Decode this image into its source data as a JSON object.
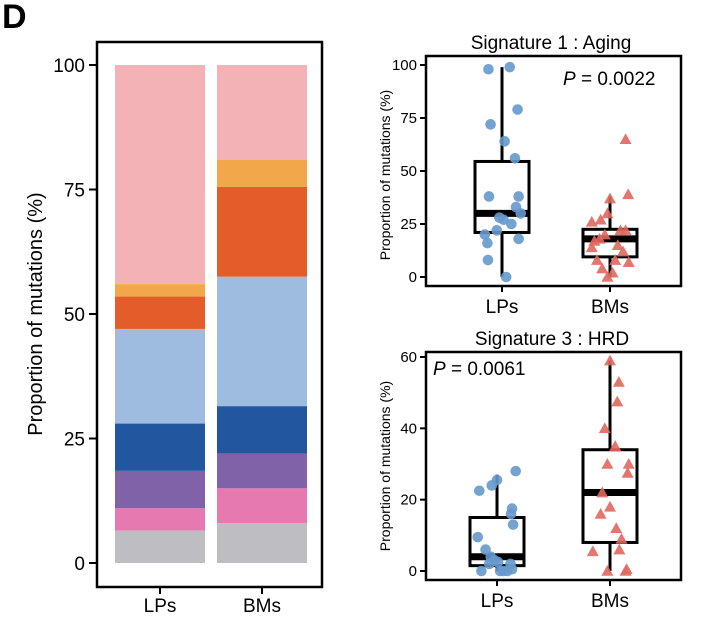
{
  "panel_label": "D",
  "colors": {
    "stack": [
      "#bdbdc2",
      "#e67ab0",
      "#7f62a8",
      "#2257a0",
      "#9dbce0",
      "#e55c2b",
      "#f2a84a",
      "#f2b2b6"
    ],
    "lp_point": "#6699cc",
    "bm_point": "#e0685f",
    "box": "#000000"
  },
  "chart_data": [
    {
      "type": "bar",
      "subtype": "stacked-100",
      "title": "",
      "xlabel": "",
      "ylabel": "Proportion of mutations (%)",
      "categories": [
        "LPs",
        "BMs"
      ],
      "ylim": [
        0,
        100
      ],
      "yticks": [
        "0",
        "25",
        "50",
        "75",
        "100"
      ],
      "grid": false,
      "legend": "none",
      "series": [
        {
          "values": [
            6.5,
            8.0
          ]
        },
        {
          "values": [
            4.5,
            7.0
          ]
        },
        {
          "values": [
            7.5,
            7.0
          ]
        },
        {
          "values": [
            9.5,
            9.5
          ]
        },
        {
          "values": [
            19.0,
            26.0
          ]
        },
        {
          "values": [
            6.5,
            18.0
          ]
        },
        {
          "values": [
            2.5,
            5.5
          ]
        },
        {
          "values": [
            44.0,
            19.0
          ]
        }
      ]
    },
    {
      "type": "box",
      "title": "Signature 1 : Aging",
      "ylabel": "Proportion of mutations (%)",
      "xlabel": "",
      "categories": [
        "LPs",
        "BMs"
      ],
      "annotation": {
        "p_label": "P",
        "p_value": " = 0.0022",
        "position": "top-right"
      },
      "ylim": [
        -2,
        102
      ],
      "yticks": [
        "0",
        "25",
        "50",
        "75",
        "100"
      ],
      "boxes": [
        {
          "whisker_low": 0,
          "q1": 21,
          "median": 30,
          "q3": 54.5,
          "whisker_high": 99
        },
        {
          "whisker_low": 0,
          "q1": 9.5,
          "median": 18,
          "q3": 22.5,
          "whisker_high": 38
        }
      ],
      "points": [
        [
          [
            -0.26,
            98
          ],
          [
            -0.22,
            72
          ],
          [
            0.15,
            99
          ],
          [
            0.3,
            79
          ],
          [
            0.05,
            64
          ],
          [
            -0.25,
            38
          ],
          [
            0.25,
            56
          ],
          [
            0.32,
            38
          ],
          [
            0.27,
            33
          ],
          [
            0.36,
            30
          ],
          [
            -0.33,
            20
          ],
          [
            -0.28,
            16
          ],
          [
            -0.1,
            22
          ],
          [
            -0.05,
            28
          ],
          [
            0.03,
            27
          ],
          [
            0.18,
            25
          ],
          [
            0.32,
            18
          ],
          [
            -0.27,
            8
          ],
          [
            0.08,
            0
          ]
        ],
        [
          [
            0.3,
            65
          ],
          [
            0.35,
            39
          ],
          [
            0.0,
            37
          ],
          [
            -0.35,
            26
          ],
          [
            -0.18,
            27
          ],
          [
            -0.05,
            30
          ],
          [
            0.2,
            22
          ],
          [
            0.3,
            22
          ],
          [
            -0.3,
            17
          ],
          [
            -0.2,
            18
          ],
          [
            -0.1,
            20
          ],
          [
            -0.35,
            14
          ],
          [
            0.15,
            15
          ],
          [
            0.25,
            12
          ],
          [
            -0.25,
            8
          ],
          [
            0.1,
            8
          ],
          [
            0.36,
            7
          ],
          [
            -0.15,
            4
          ],
          [
            -0.05,
            0
          ],
          [
            0.05,
            2
          ]
        ]
      ]
    },
    {
      "type": "box",
      "title": "Signature 3 : HRD",
      "ylabel": "Proportion of mutations (%)",
      "xlabel": "",
      "categories": [
        "LPs",
        "BMs"
      ],
      "annotation": {
        "p_label": "P",
        "p_value": " = 0.0061",
        "position": "top-left"
      },
      "ylim": [
        -1,
        61
      ],
      "yticks": [
        "0",
        "20",
        "40",
        "60"
      ],
      "boxes": [
        {
          "whisker_low": 0,
          "q1": 1.5,
          "median": 4,
          "q3": 15,
          "whisker_high": 27
        },
        {
          "whisker_low": 0,
          "q1": 8,
          "median": 22,
          "q3": 34,
          "whisker_high": 59
        }
      ],
      "points": [
        [
          [
            -0.34,
            22.5
          ],
          [
            0.0,
            25.5
          ],
          [
            -0.1,
            24
          ],
          [
            0.36,
            28
          ],
          [
            0.29,
            17.5
          ],
          [
            0.27,
            16
          ],
          [
            -0.22,
            6
          ],
          [
            0.31,
            13
          ],
          [
            -0.12,
            4
          ],
          [
            -0.05,
            3
          ],
          [
            0.02,
            2.5
          ],
          [
            0.26,
            2
          ],
          [
            -0.37,
            9.5
          ],
          [
            -0.3,
            0
          ],
          [
            0.06,
            0
          ],
          [
            0.12,
            0
          ],
          [
            0.2,
            0
          ],
          [
            0.29,
            0.5
          ],
          [
            -0.15,
            2
          ]
        ],
        [
          [
            0.0,
            59
          ],
          [
            0.17,
            53
          ],
          [
            0.14,
            47.5
          ],
          [
            0.36,
            30
          ],
          [
            0.34,
            27.5
          ],
          [
            -0.1,
            40
          ],
          [
            0.1,
            35
          ],
          [
            -0.05,
            30
          ],
          [
            -0.15,
            22
          ],
          [
            0.0,
            18
          ],
          [
            0.12,
            12
          ],
          [
            -0.18,
            16
          ],
          [
            0.22,
            9
          ],
          [
            0.18,
            6
          ],
          [
            -0.33,
            5.5
          ],
          [
            0.32,
            0.5
          ],
          [
            -0.05,
            0
          ],
          [
            0.3,
            0
          ]
        ]
      ]
    }
  ]
}
